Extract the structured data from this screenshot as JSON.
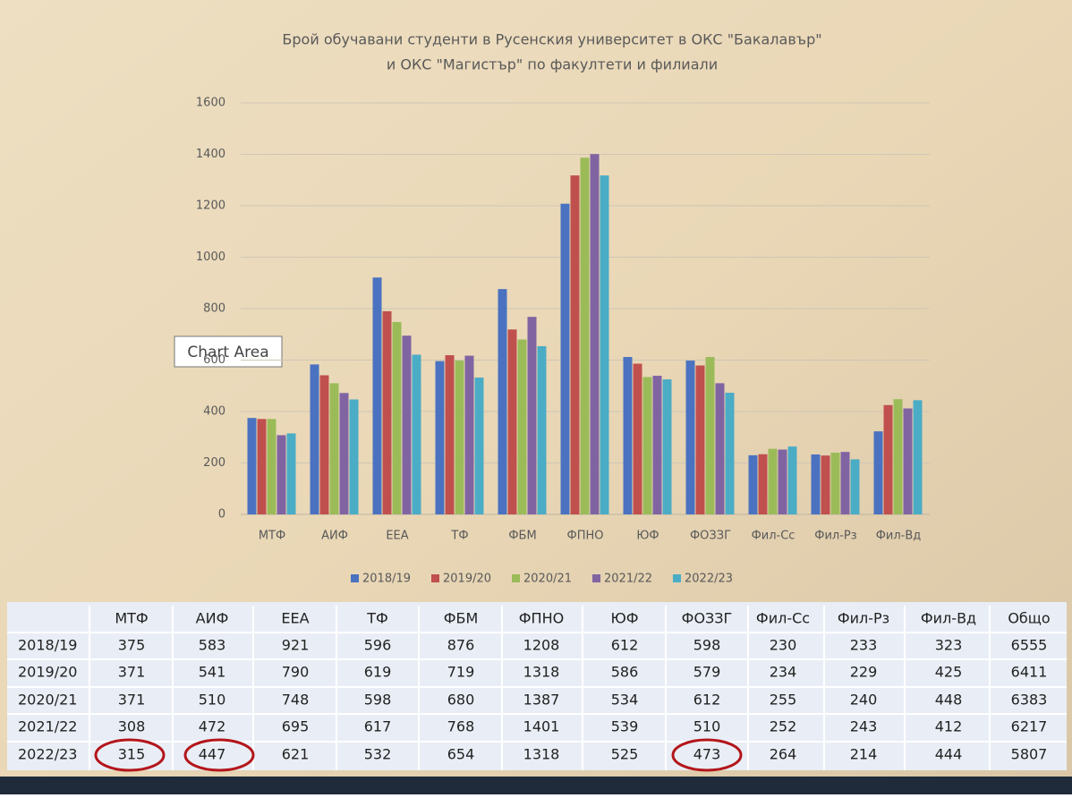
{
  "chart_data": {
    "type": "bar",
    "title": [
      "Брой обучавани студенти в Русенския университет в ОКС \"Бакалавър\"",
      "и ОКС \"Магистър\" по факултети и филиали"
    ],
    "categories": [
      "МТФ",
      "АИФ",
      "ЕЕА",
      "ТФ",
      "ФБМ",
      "ФПНО",
      "ЮФ",
      "ФОЗЗГ",
      "Фил-Сс",
      "Фил-Рз",
      "Фил-Вд"
    ],
    "series": [
      {
        "name": "2018/19",
        "color": "#4a72c0",
        "values": [
          375,
          583,
          921,
          596,
          876,
          1208,
          612,
          598,
          230,
          233,
          323
        ]
      },
      {
        "name": "2019/20",
        "color": "#c0504d",
        "values": [
          371,
          541,
          790,
          619,
          719,
          1318,
          586,
          579,
          234,
          229,
          425
        ]
      },
      {
        "name": "2020/21",
        "color": "#9bbb59",
        "values": [
          371,
          510,
          748,
          598,
          680,
          1387,
          534,
          612,
          255,
          240,
          448
        ]
      },
      {
        "name": "2021/22",
        "color": "#8064a2",
        "values": [
          308,
          472,
          695,
          617,
          768,
          1401,
          539,
          510,
          252,
          243,
          412
        ]
      },
      {
        "name": "2022/23",
        "color": "#4bacc6",
        "values": [
          315,
          447,
          621,
          532,
          654,
          1318,
          525,
          473,
          264,
          214,
          444
        ]
      }
    ],
    "ylim": [
      0,
      1600
    ],
    "yticks": [
      0,
      200,
      400,
      600,
      800,
      1000,
      1200,
      1400,
      1600
    ],
    "grid": true,
    "legend": "bottom"
  },
  "table": {
    "total_header": "Общо",
    "totals": [
      6555,
      6411,
      6383,
      6217,
      5807
    ]
  },
  "tooltip": "Chart Area"
}
